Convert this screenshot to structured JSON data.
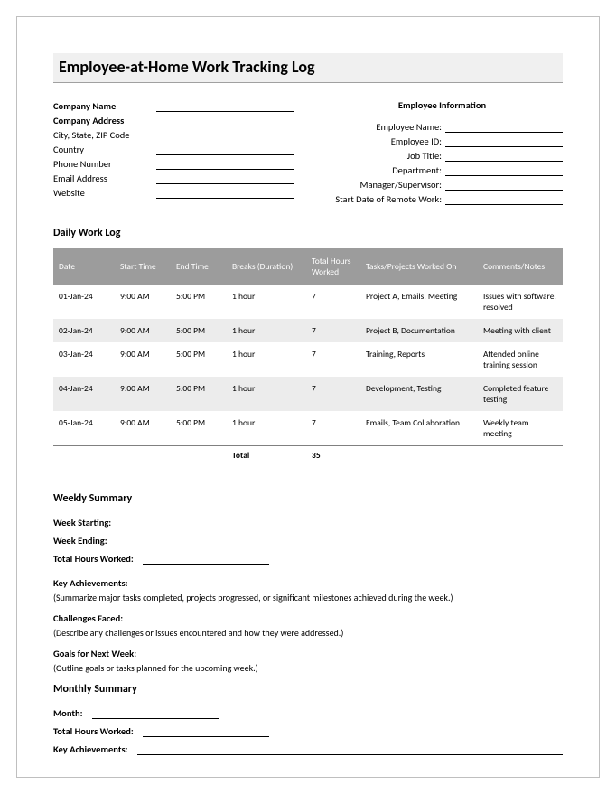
{
  "title": "Employee-at-Home Work Tracking Log",
  "company": {
    "name_label": "Company Name",
    "address_label": "Company Address",
    "csz_label": "City, State, ZIP Code",
    "country_label": "Country",
    "phone_label": "Phone Number",
    "email_label": "Email Address",
    "website_label": "Website"
  },
  "employee": {
    "section_title": "Employee Information",
    "name_label": "Employee Name:",
    "id_label": "Employee ID:",
    "job_label": "Job Title:",
    "dept_label": "Department:",
    "mgr_label": "Manager/Supervisor:",
    "start_label": "Start Date of Remote Work:"
  },
  "daily": {
    "heading": "Daily Work Log",
    "cols": {
      "date": "Date",
      "start": "Start Time",
      "end": "End Time",
      "breaks": "Breaks (Duration)",
      "hours": "Total Hours Worked",
      "tasks": "Tasks/Projects Worked On",
      "notes": "Comments/Notes"
    },
    "rows": [
      {
        "date": "01-Jan-24",
        "start": "9:00 AM",
        "end": "5:00 PM",
        "breaks": "1 hour",
        "hours": "7",
        "tasks": "Project A, Emails, Meeting",
        "notes": "Issues with software, resolved"
      },
      {
        "date": "02-Jan-24",
        "start": "9:00 AM",
        "end": "5:00 PM",
        "breaks": "1 hour",
        "hours": "7",
        "tasks": "Project B, Documentation",
        "notes": "Meeting with client"
      },
      {
        "date": "03-Jan-24",
        "start": "9:00 AM",
        "end": "5:00 PM",
        "breaks": "1 hour",
        "hours": "7",
        "tasks": "Training, Reports",
        "notes": "Attended online training session"
      },
      {
        "date": "04-Jan-24",
        "start": "9:00 AM",
        "end": "5:00 PM",
        "breaks": "1 hour",
        "hours": "7",
        "tasks": "Development, Testing",
        "notes": "Completed feature testing"
      },
      {
        "date": "05-Jan-24",
        "start": "9:00 AM",
        "end": "5:00 PM",
        "breaks": "1 hour",
        "hours": "7",
        "tasks": "Emails, Team Collaboration",
        "notes": "Weekly team meeting"
      }
    ],
    "total_label": "Total",
    "total_value": "35"
  },
  "weekly": {
    "heading": "Weekly Summary",
    "start_label": "Week Starting:",
    "end_label": "Week Ending:",
    "hours_label": "Total Hours Worked:",
    "ach_label": "Key Achievements:",
    "ach_note": "(Summarize major tasks completed, projects progressed, or significant milestones achieved during the week.)",
    "chal_label": "Challenges Faced:",
    "chal_note": "(Describe any challenges or issues encountered and how they were addressed.)",
    "goals_label": "Goals for Next Week:",
    "goals_note": "(Outline goals or tasks planned for the upcoming week.)"
  },
  "monthly": {
    "heading": "Monthly Summary",
    "month_label": "Month:",
    "hours_label": "Total Hours Worked:",
    "ach_label": "Key Achievements:"
  },
  "style": {
    "header_bg": "#9c9c9c",
    "header_text": "#ffffff",
    "alt_row_bg": "#ececec",
    "title_bg": "#f0f0f0"
  }
}
